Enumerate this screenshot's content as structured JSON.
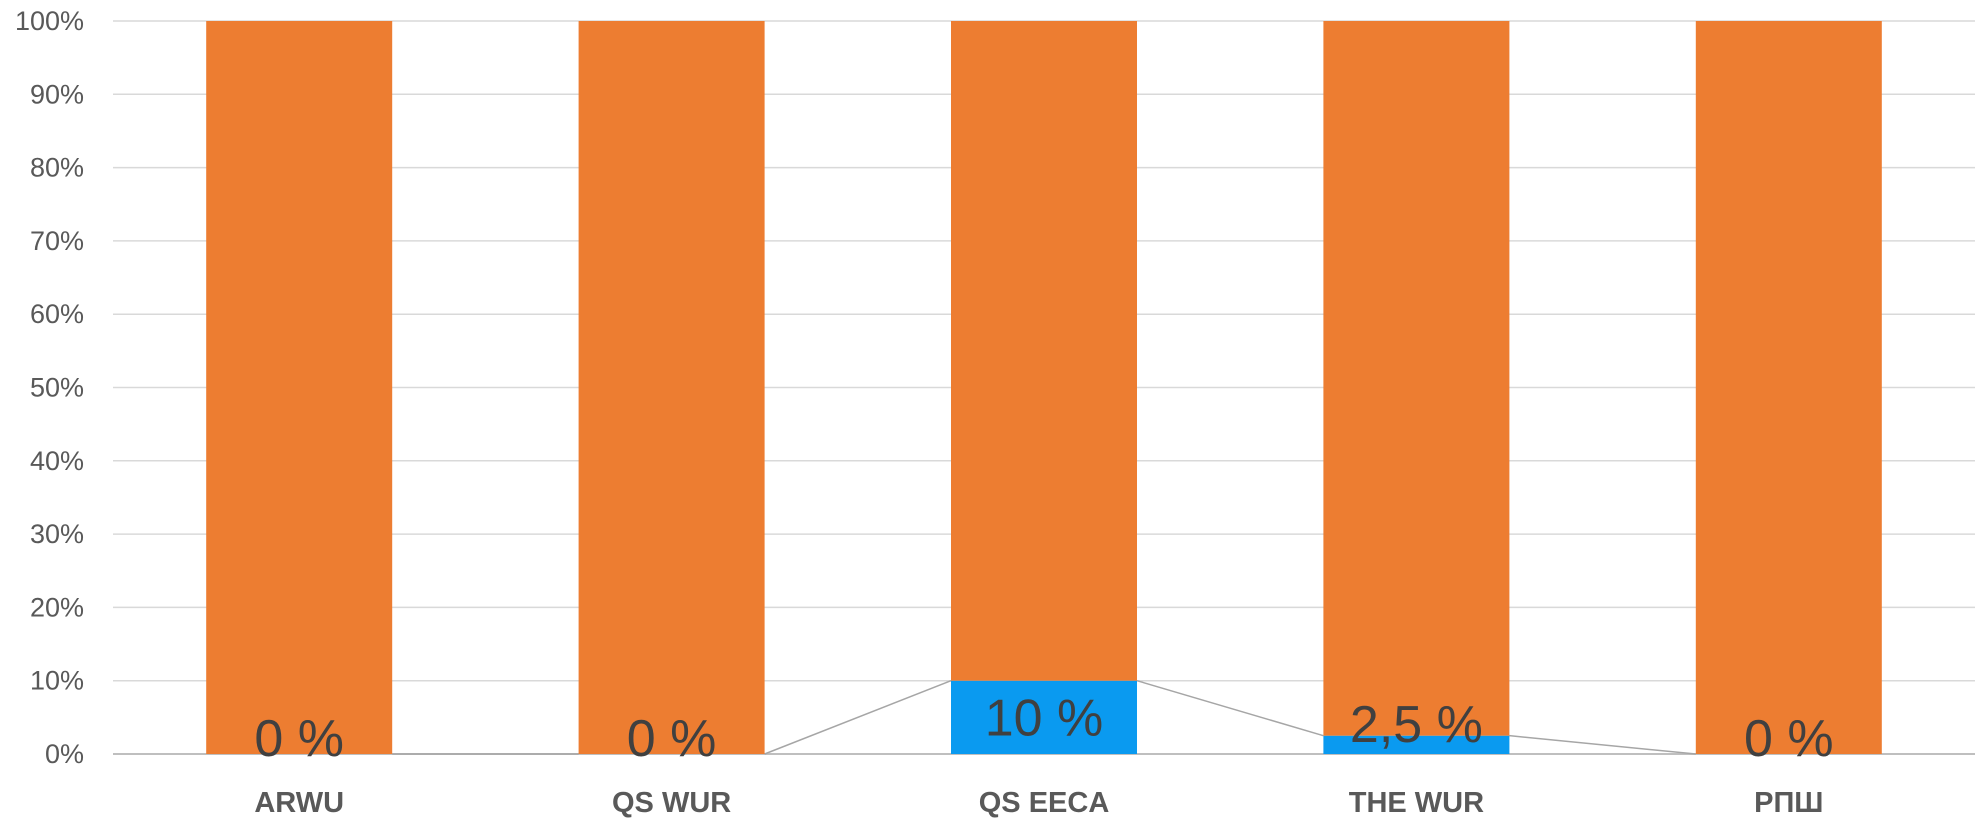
{
  "chart_data": {
    "type": "bar",
    "stacked": true,
    "percent_stacked": true,
    "categories": [
      "ARWU",
      "QS WUR",
      "QS EECA",
      "THE WUR",
      "РПШ"
    ],
    "series": [
      {
        "values": [
          0,
          0,
          10,
          2.5,
          0
        ],
        "color": "#0a9af0"
      },
      {
        "values": [
          100,
          100,
          90,
          97.5,
          100
        ],
        "color": "#ed7d31"
      }
    ],
    "data_labels": [
      "0 %",
      "0 %",
      "10 %",
      "2,5 %",
      "0 %"
    ],
    "y_ticks": [
      "0%",
      "10%",
      "20%",
      "30%",
      "40%",
      "50%",
      "60%",
      "70%",
      "80%",
      "90%",
      "100%"
    ],
    "ylim": [
      0,
      100
    ],
    "grid": true,
    "series_lines": true,
    "legend": "none",
    "colors": {
      "grid": "#d9d9d9",
      "series_line": "#a6a6a6",
      "text": "#595959",
      "data_label": "#404040"
    }
  }
}
